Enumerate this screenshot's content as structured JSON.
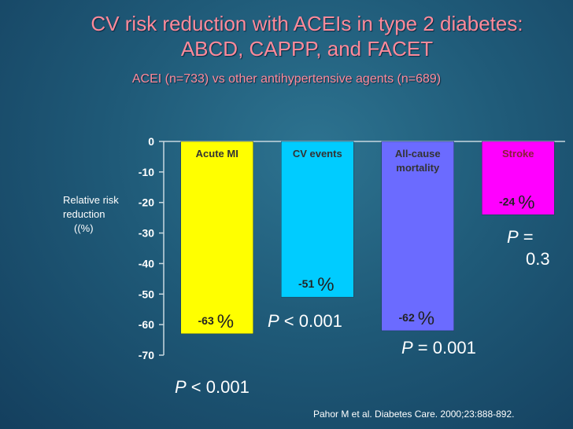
{
  "title_line1": "CV risk reduction with ACEIs in type 2 diabetes:",
  "title_line2": "ABCD, CAPPP, and FACET",
  "subtitle": "ACEI (n=733) vs other antihypertensive agents (n=689)",
  "citation": "Pahor M et al. Diabetes Care. 2000;23:888-892.",
  "chart_data": {
    "type": "bar",
    "categories": [
      "Acute MI",
      "CV events",
      "All-cause mortality",
      "Stroke"
    ],
    "values": [
      -63,
      -51,
      -62,
      -24
    ],
    "value_labels": [
      "-63",
      "-51",
      "-62",
      "-24"
    ],
    "value_unit": "%",
    "title": "CV risk reduction with ACEIs in type 2 diabetes: ABCD, CAPPP, and FACET",
    "subtitle": "ACEI (n=733) vs other antihypertensive agents (n=689)",
    "ylabel_lines": [
      "Relative risk",
      "reduction",
      "((%)"
    ],
    "ylim": [
      -70,
      0
    ],
    "yticks": [
      "0",
      "-10",
      "-20",
      "-30",
      "-40",
      "-50",
      "-60",
      "-70"
    ],
    "colors": [
      "#ffff00",
      "#00ccff",
      "#6b6bff",
      "#ff00ff"
    ],
    "p_values": [
      {
        "p": "P",
        "rest": " < 0.001"
      },
      {
        "p": "P",
        "rest": " < 0.001"
      },
      {
        "p": "P",
        "rest": " = 0.001"
      },
      {
        "p": "P",
        "rest": " =",
        "rest2": "0.3"
      }
    ]
  }
}
